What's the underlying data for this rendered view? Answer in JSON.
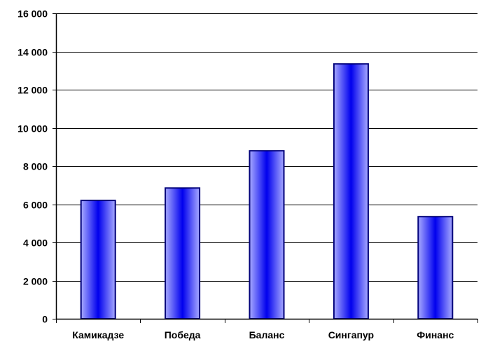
{
  "chart_data": {
    "type": "bar",
    "title": "",
    "xlabel": "",
    "ylabel": "",
    "categories": [
      "Камикадзе",
      "Победа",
      "Баланс",
      "Сингапур",
      "Финанс"
    ],
    "values": [
      6200,
      6850,
      8800,
      13350,
      5350
    ],
    "ylim": [
      0,
      16000
    ],
    "yticks": [
      0,
      2000,
      4000,
      6000,
      8000,
      10000,
      12000,
      14000,
      16000
    ],
    "ytick_labels": [
      "0",
      "2 000",
      "4 000",
      "6 000",
      "8 000",
      "10 000",
      "12 000",
      "14 000",
      "16 000"
    ],
    "grid": true,
    "legend": "none",
    "colors": {
      "bar_edge": "#00007a",
      "bar_light": "#a8aaff",
      "bar_center": "#0000ee",
      "gridline": "#000000",
      "axis": "#000000"
    }
  }
}
